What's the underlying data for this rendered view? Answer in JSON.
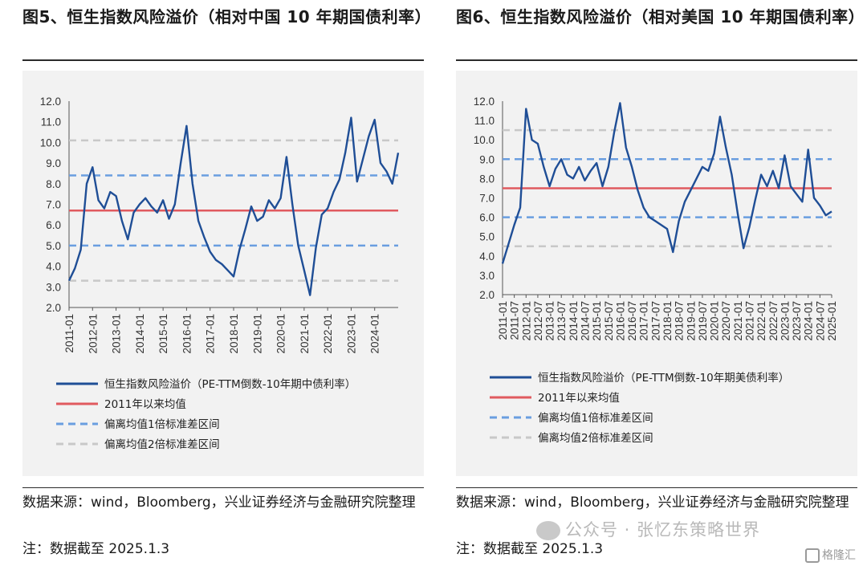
{
  "colors": {
    "series": "#1f4e96",
    "mean": "#e05a5f",
    "band1": "#6a9ee0",
    "band2": "#c8c8c8",
    "background": "#f2f2f2"
  },
  "figures": [
    {
      "title": "图5、恒生指数风险溢价（相对中国 10 年期国债利率）",
      "source": "数据来源：wind，Bloomberg，兴业证券经济与金融研究院整理",
      "note": "注：数据截至 2025.1.3"
    },
    {
      "title": "图6、恒生指数风险溢价（相对美国 10 年期国债利率）",
      "source": "数据来源：wind，Bloomberg，兴业证券经济与金融研究院整理",
      "note": "注：数据截至 2025.1.3"
    }
  ],
  "chart_data": [
    {
      "type": "line",
      "ylim": [
        2.0,
        12.0
      ],
      "y_ticks": [
        "12.0",
        "11.0",
        "10.0",
        "9.0",
        "8.0",
        "7.0",
        "6.0",
        "5.0",
        "4.0",
        "3.0",
        "2.0"
      ],
      "x_ticks": [
        "2011-01",
        "2012-01",
        "2013-01",
        "2014-01",
        "2015-01",
        "2016-01",
        "2017-01",
        "2018-01",
        "2019-01",
        "2020-01",
        "2021-01",
        "2022-01",
        "2023-01",
        "2024-01"
      ],
      "x_range": [
        "2011-01",
        "2025-01"
      ],
      "grid": false,
      "legend": [
        "恒生指数风险溢价（PE-TTM倒数-10年期中债利率）",
        "2011年以来均值",
        "偏离均值1倍标准差区间",
        "偏离均值2倍标准差区间"
      ],
      "reference_lines": {
        "mean": 6.7,
        "band1": [
          5.0,
          8.4
        ],
        "band2": [
          3.3,
          10.1
        ]
      },
      "series": [
        {
          "x": [
            "2011-01",
            "2011-04",
            "2011-07",
            "2011-10",
            "2012-01",
            "2012-04",
            "2012-07",
            "2012-10",
            "2013-01",
            "2013-04",
            "2013-07",
            "2013-10",
            "2014-01",
            "2014-04",
            "2014-07",
            "2014-10",
            "2015-01",
            "2015-04",
            "2015-07",
            "2015-10",
            "2016-01",
            "2016-04",
            "2016-07",
            "2016-10",
            "2017-01",
            "2017-04",
            "2017-07",
            "2017-10",
            "2018-01",
            "2018-04",
            "2018-07",
            "2018-10",
            "2019-01",
            "2019-04",
            "2019-07",
            "2019-10",
            "2020-01",
            "2020-04",
            "2020-07",
            "2020-10",
            "2021-01",
            "2021-04",
            "2021-07",
            "2021-10",
            "2022-01",
            "2022-04",
            "2022-07",
            "2022-10",
            "2023-01",
            "2023-04",
            "2023-07",
            "2023-10",
            "2024-01",
            "2024-04",
            "2024-07",
            "2024-10",
            "2025-01"
          ],
          "values": [
            3.3,
            3.9,
            4.8,
            8.0,
            8.8,
            7.2,
            6.8,
            7.6,
            7.4,
            6.2,
            5.3,
            6.6,
            7.0,
            7.3,
            6.9,
            6.6,
            7.2,
            6.3,
            7.0,
            9.0,
            10.8,
            8.0,
            6.2,
            5.4,
            4.7,
            4.3,
            4.1,
            3.8,
            3.5,
            4.8,
            5.8,
            6.9,
            6.2,
            6.4,
            7.2,
            6.8,
            7.3,
            9.3,
            7.0,
            5.0,
            3.8,
            2.6,
            4.9,
            6.5,
            6.8,
            7.6,
            8.2,
            9.5,
            11.2,
            8.1,
            9.2,
            10.3,
            11.1,
            9.0,
            8.6,
            8.0,
            9.5
          ]
        }
      ]
    },
    {
      "type": "line",
      "ylim": [
        2.0,
        12.0
      ],
      "y_ticks": [
        "12.0",
        "11.0",
        "10.0",
        "9.0",
        "8.0",
        "7.0",
        "6.0",
        "5.0",
        "4.0",
        "3.0",
        "2.0"
      ],
      "x_ticks": [
        "2011-01",
        "2011-07",
        "2012-01",
        "2012-07",
        "2013-01",
        "2013-07",
        "2014-01",
        "2014-07",
        "2015-01",
        "2015-07",
        "2016-01",
        "2016-07",
        "2017-01",
        "2017-07",
        "2018-01",
        "2018-07",
        "2019-01",
        "2019-07",
        "2020-01",
        "2020-07",
        "2021-01",
        "2021-07",
        "2022-01",
        "2022-07",
        "2023-01",
        "2023-07",
        "2024-01",
        "2024-07",
        "2025-01"
      ],
      "x_range": [
        "2011-01",
        "2025-01"
      ],
      "grid": false,
      "legend": [
        "恒生指数风险溢价（PE-TTM倒数-10年期美债利率）",
        "2011年以来均值",
        "偏离均值1倍标准差区间",
        "偏离均值2倍标准差区间"
      ],
      "reference_lines": {
        "mean": 7.5,
        "band1": [
          6.0,
          9.0
        ],
        "band2": [
          4.5,
          10.5
        ]
      },
      "series": [
        {
          "x": [
            "2011-01",
            "2011-04",
            "2011-07",
            "2011-10",
            "2012-01",
            "2012-04",
            "2012-07",
            "2012-10",
            "2013-01",
            "2013-04",
            "2013-07",
            "2013-10",
            "2014-01",
            "2014-04",
            "2014-07",
            "2014-10",
            "2015-01",
            "2015-04",
            "2015-07",
            "2015-10",
            "2016-01",
            "2016-04",
            "2016-07",
            "2016-10",
            "2017-01",
            "2017-04",
            "2017-07",
            "2017-10",
            "2018-01",
            "2018-04",
            "2018-07",
            "2018-10",
            "2019-01",
            "2019-04",
            "2019-07",
            "2019-10",
            "2020-01",
            "2020-04",
            "2020-07",
            "2020-10",
            "2021-01",
            "2021-04",
            "2021-07",
            "2021-10",
            "2022-01",
            "2022-04",
            "2022-07",
            "2022-10",
            "2023-01",
            "2023-04",
            "2023-07",
            "2023-10",
            "2024-01",
            "2024-04",
            "2024-07",
            "2024-10",
            "2025-01"
          ],
          "values": [
            3.6,
            4.6,
            5.6,
            6.5,
            11.6,
            10.0,
            9.8,
            8.6,
            7.6,
            8.5,
            9.0,
            8.2,
            8.0,
            8.6,
            7.9,
            8.4,
            8.8,
            7.6,
            8.6,
            10.4,
            11.9,
            9.6,
            8.6,
            7.4,
            6.5,
            6.0,
            5.8,
            5.6,
            5.4,
            4.2,
            5.8,
            6.8,
            7.4,
            8.0,
            8.6,
            8.4,
            9.3,
            11.2,
            9.6,
            8.2,
            6.2,
            4.4,
            5.5,
            6.9,
            8.2,
            7.6,
            8.4,
            7.5,
            9.2,
            7.6,
            7.2,
            6.8,
            9.5,
            7.0,
            6.6,
            6.1,
            6.3
          ]
        }
      ]
    }
  ],
  "watermark": "公众号 · 张忆东策略世界",
  "corner_logo": "格隆汇"
}
